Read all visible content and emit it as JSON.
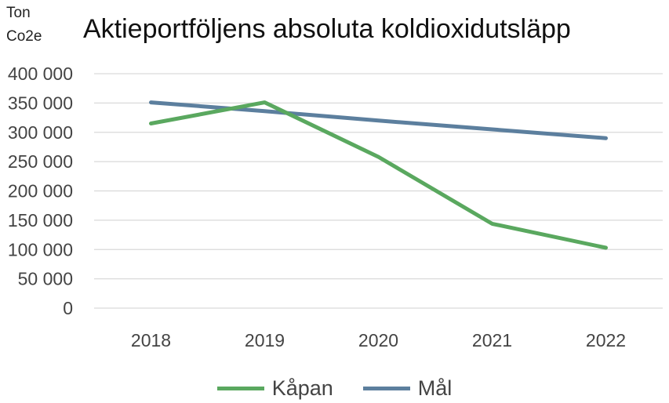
{
  "chart_data": {
    "type": "line",
    "title": "Aktieportföljens absoluta koldioxidutsläpp",
    "unit_line1": "Ton",
    "unit_line2": "Co2e",
    "x": [
      "2018",
      "2019",
      "2020",
      "2021",
      "2022"
    ],
    "ylim": [
      0,
      400000
    ],
    "yticks": [
      0,
      50000,
      100000,
      150000,
      200000,
      250000,
      300000,
      350000,
      400000
    ],
    "ytick_labels": [
      "0",
      "50 000",
      "100 000",
      "150 000",
      "200 000",
      "250 000",
      "300 000",
      "350 000",
      "400 000"
    ],
    "grid": true,
    "legend_position": "bottom",
    "series": [
      {
        "name": "Kåpan",
        "color": "#5aa85f",
        "values": [
          315000,
          351000,
          258000,
          144000,
          103000
        ]
      },
      {
        "name": "Mål",
        "color": "#5c7f9e",
        "values": [
          351000,
          336000,
          320000,
          305000,
          290000
        ]
      }
    ]
  }
}
